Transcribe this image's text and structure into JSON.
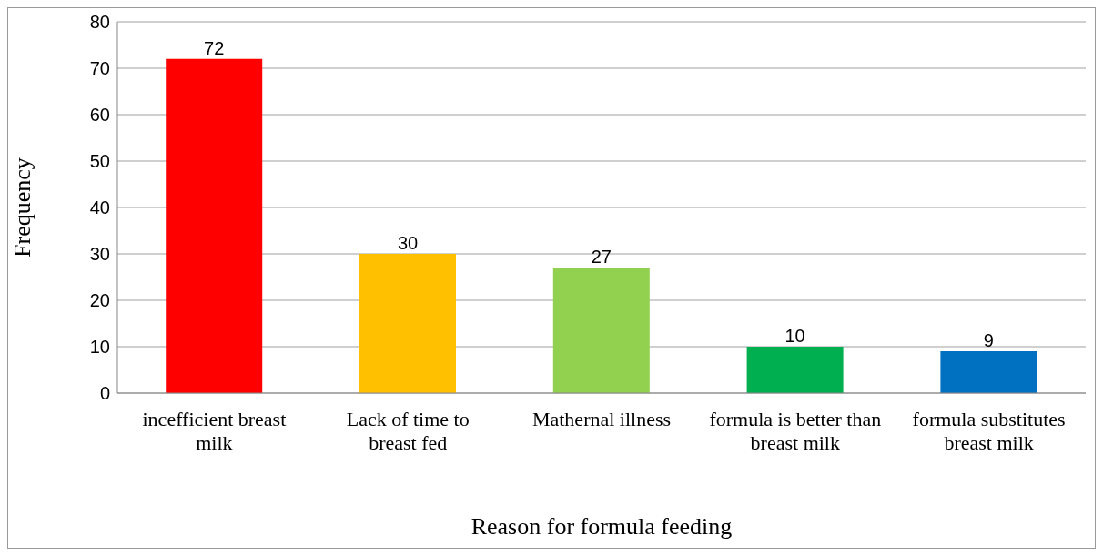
{
  "chart_data": {
    "type": "bar",
    "xlabel": "Reason for formula feeding",
    "ylabel": "Frequency",
    "categories": [
      "incefficient breast milk",
      "Lack of time to breast fed",
      "Mathernal illness",
      "formula is better than breast milk",
      "formula substitutes breast milk"
    ],
    "values": [
      72,
      30,
      27,
      10,
      9
    ],
    "colors": [
      "#ff0000",
      "#ffc000",
      "#92d050",
      "#00b050",
      "#0070c0"
    ],
    "ylim": [
      0,
      80
    ],
    "yticks": [
      0,
      10,
      20,
      30,
      40,
      50,
      60,
      70,
      80
    ],
    "grid": "y",
    "data_labels": true,
    "legend": false
  }
}
